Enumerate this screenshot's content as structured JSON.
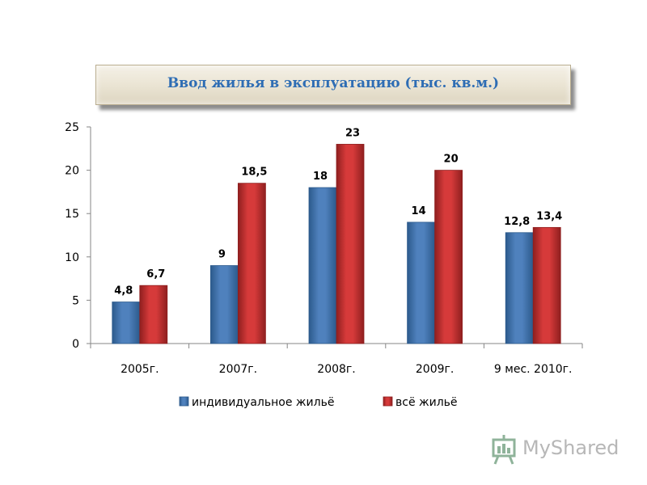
{
  "title": "Ввод жилья в эксплуатацию (тыс. кв.м.)",
  "colors": {
    "series1": "#4f81bd",
    "series2": "#d63a3a",
    "title_text": "#2e6db4"
  },
  "watermark": {
    "text": "MyShared",
    "icon": "presentation-board-icon"
  },
  "chart_data": {
    "type": "bar",
    "categories": [
      "2005г.",
      "2007г.",
      "2008г.",
      "2009г.",
      "9 мес. 2010г."
    ],
    "series": [
      {
        "name": "индивидуальное жильё",
        "values": [
          4.8,
          9,
          18,
          14,
          12.8
        ],
        "labels": [
          "4,8",
          "9",
          "18",
          "14",
          "12,8"
        ]
      },
      {
        "name": "всё жильё",
        "values": [
          6.7,
          18.5,
          23,
          20,
          13.4
        ],
        "labels": [
          "6,7",
          "18,5",
          "23",
          "20",
          "13,4"
        ]
      }
    ],
    "ylim": [
      0,
      25
    ],
    "yticks": [
      0,
      5,
      10,
      15,
      20,
      25
    ],
    "grid": false,
    "legend": "bottom"
  }
}
